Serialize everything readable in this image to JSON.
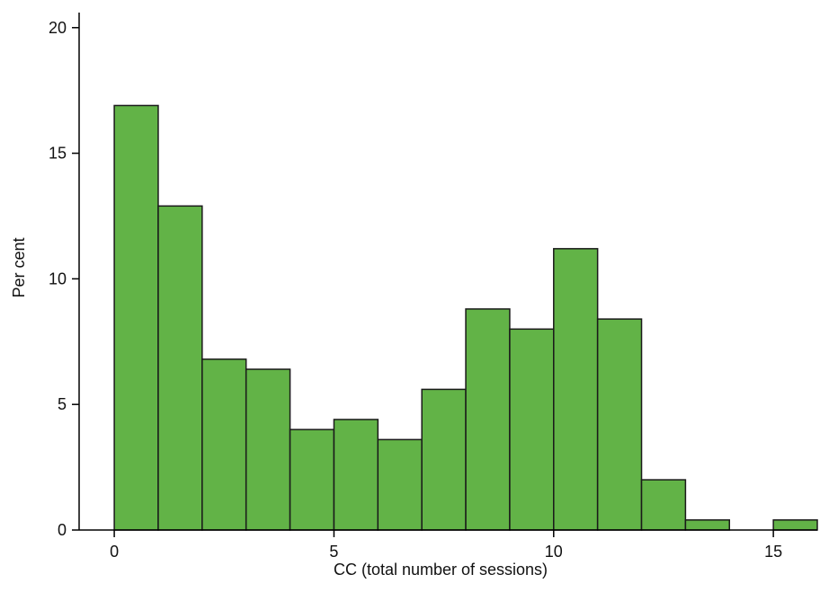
{
  "chart_data": {
    "type": "bar",
    "title": "",
    "xlabel": "CC (total number of sessions)",
    "ylabel": "Per cent",
    "bins": [
      {
        "x0": 0,
        "x1": 1,
        "value": 16.9
      },
      {
        "x0": 1,
        "x1": 2,
        "value": 12.9
      },
      {
        "x0": 2,
        "x1": 3,
        "value": 6.8
      },
      {
        "x0": 3,
        "x1": 4,
        "value": 6.4
      },
      {
        "x0": 4,
        "x1": 5,
        "value": 4.0
      },
      {
        "x0": 5,
        "x1": 6,
        "value": 4.4
      },
      {
        "x0": 6,
        "x1": 7,
        "value": 3.6
      },
      {
        "x0": 7,
        "x1": 8,
        "value": 5.6
      },
      {
        "x0": 8,
        "x1": 9,
        "value": 8.8
      },
      {
        "x0": 9,
        "x1": 10,
        "value": 8.0
      },
      {
        "x0": 10,
        "x1": 11,
        "value": 11.2
      },
      {
        "x0": 11,
        "x1": 12,
        "value": 8.4
      },
      {
        "x0": 12,
        "x1": 13,
        "value": 2.0
      },
      {
        "x0": 13,
        "x1": 14,
        "value": 0.4
      },
      {
        "x0": 14,
        "x1": 15,
        "value": 0
      },
      {
        "x0": 15,
        "x1": 16,
        "value": 0.4
      }
    ],
    "xlim": [
      -0.8,
      16
    ],
    "ylim": [
      0,
      20.6
    ],
    "xticks": [
      0,
      5,
      10,
      15
    ],
    "yticks": [
      0,
      5,
      10,
      15,
      20
    ],
    "bar_color": "#62b347",
    "edge_color": "#1a1a1a",
    "grid": false,
    "legend": "none"
  }
}
